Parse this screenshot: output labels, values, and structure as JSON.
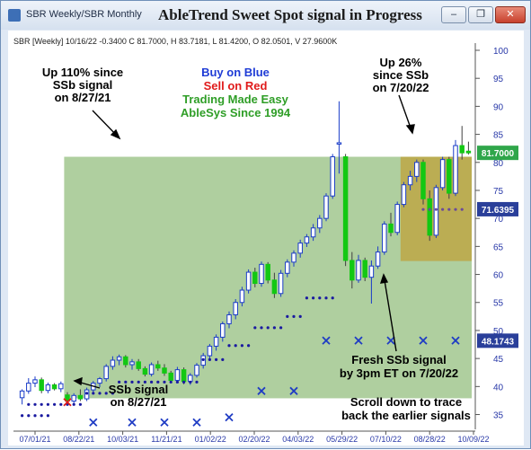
{
  "window": {
    "title": "SBR Weekly/SBR Monthly",
    "banner": "AbleTrend Sweet Spot signal in Progress",
    "minimize_glyph": "–",
    "restore_glyph": "❐",
    "close_glyph": "✕"
  },
  "chart_header": "SBR [Weekly] 10/16/22  -0.3400 C 81.7000, H 83.7181, L 81.4200, O 82.0501, V 27.9600K",
  "colors": {
    "up_candle": "#1a3cc8",
    "down_candle": "#13c813",
    "outline": "#404040",
    "dot": "#1a1aa0",
    "green_zone": "#9dc58a",
    "brown_zone": "#bfa23a",
    "buy_text": "#1f3cd6",
    "sell_text": "#e01b1b",
    "green_text": "#2f9e27"
  },
  "annotations": {
    "up110": [
      "Up 110% since",
      "SSb signal",
      "on 8/27/21"
    ],
    "buy": "Buy on Blue",
    "sell": "Sell on Red",
    "easy": "Trading Made Easy",
    "since": "AbleSys Since 1994",
    "up26": [
      "Up 26%",
      "since SSb",
      "on 7/20/22"
    ],
    "ssb_signal": [
      "SSb signal",
      "on 8/27/21"
    ],
    "fresh": [
      "Fresh SSb signal",
      "by 3pm ET on 7/20/22"
    ],
    "scroll": [
      "Scroll down to trace",
      "back the earlier signals"
    ]
  },
  "price_labels": {
    "current": "81.7000",
    "middle": "71.6395",
    "stop": "48.1743"
  },
  "chart_data": {
    "type": "candlestick",
    "ylim": [
      33,
      100
    ],
    "y_ticks": [
      35,
      40,
      45,
      50,
      55,
      60,
      65,
      70,
      75,
      80,
      85,
      90,
      95,
      100
    ],
    "x_ticks": [
      "07/01/21",
      "08/22/21",
      "10/03/21",
      "11/21/21",
      "01/02/22",
      "02/20/22",
      "04/03/22",
      "05/29/22",
      "07/10/22",
      "08/28/22",
      "10/09/22"
    ],
    "candles": [
      {
        "o": 38,
        "h": 39.5,
        "l": 36.8,
        "c": 39.2
      },
      {
        "o": 39.2,
        "h": 41.5,
        "l": 38.7,
        "c": 40.6
      },
      {
        "o": 40.6,
        "h": 41.8,
        "l": 39.9,
        "c": 41.2
      },
      {
        "o": 41.2,
        "h": 41.6,
        "l": 38.8,
        "c": 39.3
      },
      {
        "o": 39.3,
        "h": 40.7,
        "l": 38.8,
        "c": 40.3
      },
      {
        "o": 40.3,
        "h": 40.6,
        "l": 39.3,
        "c": 39.6
      },
      {
        "o": 39.6,
        "h": 40.9,
        "l": 39.0,
        "c": 40.5
      },
      {
        "o": 38.5,
        "h": 39.0,
        "l": 36.8,
        "c": 37.4
      },
      {
        "o": 37.4,
        "h": 38.8,
        "l": 37.0,
        "c": 38.4
      },
      {
        "o": 38.4,
        "h": 39.5,
        "l": 37.4,
        "c": 37.8
      },
      {
        "o": 37.8,
        "h": 39.8,
        "l": 37.4,
        "c": 39.4
      },
      {
        "o": 39.4,
        "h": 41.0,
        "l": 38.8,
        "c": 40.6
      },
      {
        "o": 40.6,
        "h": 41.7,
        "l": 39.9,
        "c": 41.4
      },
      {
        "o": 41.4,
        "h": 44.0,
        "l": 40.9,
        "c": 43.6
      },
      {
        "o": 43.6,
        "h": 45.4,
        "l": 43.0,
        "c": 44.7
      },
      {
        "o": 44.7,
        "h": 45.7,
        "l": 43.8,
        "c": 45.3
      },
      {
        "o": 45.3,
        "h": 45.6,
        "l": 43.4,
        "c": 43.9
      },
      {
        "o": 43.9,
        "h": 44.9,
        "l": 43.0,
        "c": 44.4
      },
      {
        "o": 44.4,
        "h": 44.9,
        "l": 42.8,
        "c": 43.2
      },
      {
        "o": 43.2,
        "h": 43.6,
        "l": 41.8,
        "c": 42.2
      },
      {
        "o": 42.2,
        "h": 44.3,
        "l": 41.8,
        "c": 43.9
      },
      {
        "o": 43.9,
        "h": 44.6,
        "l": 42.8,
        "c": 43.3
      },
      {
        "o": 43.3,
        "h": 44.0,
        "l": 41.9,
        "c": 42.4
      },
      {
        "o": 42.4,
        "h": 42.8,
        "l": 40.6,
        "c": 41.1
      },
      {
        "o": 41.1,
        "h": 43.5,
        "l": 40.6,
        "c": 43.0
      },
      {
        "o": 43.0,
        "h": 43.4,
        "l": 40.4,
        "c": 40.9
      },
      {
        "o": 40.9,
        "h": 42.4,
        "l": 40.3,
        "c": 42.0
      },
      {
        "o": 42.0,
        "h": 44.2,
        "l": 41.6,
        "c": 43.8
      },
      {
        "o": 43.8,
        "h": 46.0,
        "l": 43.2,
        "c": 45.5
      },
      {
        "o": 45.5,
        "h": 47.6,
        "l": 44.8,
        "c": 47.2
      },
      {
        "o": 47.2,
        "h": 49.3,
        "l": 46.4,
        "c": 48.8
      },
      {
        "o": 48.8,
        "h": 51.6,
        "l": 48.0,
        "c": 51.2
      },
      {
        "o": 51.2,
        "h": 53.4,
        "l": 50.4,
        "c": 52.8
      },
      {
        "o": 52.8,
        "h": 55.6,
        "l": 52.0,
        "c": 55.0
      },
      {
        "o": 55.0,
        "h": 57.8,
        "l": 54.3,
        "c": 57.2
      },
      {
        "o": 57.2,
        "h": 60.9,
        "l": 56.6,
        "c": 60.4
      },
      {
        "o": 60.4,
        "h": 61.2,
        "l": 57.7,
        "c": 58.4
      },
      {
        "o": 58.4,
        "h": 62.3,
        "l": 57.8,
        "c": 61.8
      },
      {
        "o": 61.8,
        "h": 62.2,
        "l": 58.4,
        "c": 59.0
      },
      {
        "o": 59.0,
        "h": 60.3,
        "l": 55.8,
        "c": 56.6
      },
      {
        "o": 56.6,
        "h": 60.8,
        "l": 56.0,
        "c": 60.2
      },
      {
        "o": 60.2,
        "h": 62.7,
        "l": 59.5,
        "c": 62.2
      },
      {
        "o": 62.2,
        "h": 64.3,
        "l": 61.4,
        "c": 63.8
      },
      {
        "o": 63.8,
        "h": 66.2,
        "l": 63.0,
        "c": 65.6
      },
      {
        "o": 65.6,
        "h": 67.2,
        "l": 64.9,
        "c": 66.7
      },
      {
        "o": 66.7,
        "h": 69.0,
        "l": 66.0,
        "c": 68.3
      },
      {
        "o": 68.3,
        "h": 70.6,
        "l": 67.4,
        "c": 70.0
      },
      {
        "o": 70.0,
        "h": 74.5,
        "l": 69.5,
        "c": 74.0
      },
      {
        "o": 74.0,
        "h": 81.5,
        "l": 73.5,
        "c": 81.0
      },
      {
        "o": 83.5,
        "h": 90.9,
        "l": 78.0,
        "c": 83.5
      },
      {
        "o": 81.0,
        "h": 81.5,
        "l": 61.5,
        "c": 62.5
      },
      {
        "o": 62.5,
        "h": 64.0,
        "l": 57.5,
        "c": 59.0
      },
      {
        "o": 59.0,
        "h": 63.5,
        "l": 58.5,
        "c": 62.5
      },
      {
        "o": 62.5,
        "h": 63.0,
        "l": 58.8,
        "c": 59.5
      },
      {
        "o": 59.5,
        "h": 62.5,
        "l": 54.8,
        "c": 61.5
      },
      {
        "o": 61.5,
        "h": 65.0,
        "l": 61.0,
        "c": 64.0
      },
      {
        "o": 64.0,
        "h": 69.5,
        "l": 63.5,
        "c": 69.0
      },
      {
        "o": 69.0,
        "h": 71.0,
        "l": 66.8,
        "c": 67.5
      },
      {
        "o": 67.5,
        "h": 73.0,
        "l": 67.0,
        "c": 72.5
      },
      {
        "o": 72.5,
        "h": 76.5,
        "l": 72.0,
        "c": 76.0
      },
      {
        "o": 76.0,
        "h": 78.5,
        "l": 75.0,
        "c": 77.5
      },
      {
        "o": 77.5,
        "h": 80.5,
        "l": 76.5,
        "c": 80.0
      },
      {
        "o": 80.0,
        "h": 80.5,
        "l": 72.5,
        "c": 73.5
      },
      {
        "o": 73.5,
        "h": 75.0,
        "l": 66.0,
        "c": 67.0
      },
      {
        "o": 67.0,
        "h": 76.0,
        "l": 66.5,
        "c": 75.5
      },
      {
        "o": 75.5,
        "h": 81.0,
        "l": 75.0,
        "c": 80.5
      },
      {
        "o": 80.5,
        "h": 81.0,
        "l": 73.5,
        "c": 74.5
      },
      {
        "o": 74.5,
        "h": 84.0,
        "l": 74.0,
        "c": 83.0
      },
      {
        "o": 83.0,
        "h": 86.5,
        "l": 80.5,
        "c": 81.7
      },
      {
        "o": 82.0,
        "h": 83.7,
        "l": 81.4,
        "c": 81.7
      }
    ],
    "stop_dots": [
      {
        "from": 0,
        "to": 4,
        "y": 34.8
      },
      {
        "from": 1,
        "to": 9,
        "y": 36.8
      },
      {
        "from": 10,
        "to": 14,
        "y": 38.8
      },
      {
        "from": 15,
        "to": 27,
        "y": 40.8
      },
      {
        "from": 28,
        "to": 31,
        "y": 44.8
      },
      {
        "from": 32,
        "to": 35,
        "y": 47.3
      },
      {
        "from": 36,
        "to": 40,
        "y": 50.5
      },
      {
        "from": 41,
        "to": 43,
        "y": 52.5
      },
      {
        "from": 44,
        "to": 48,
        "y": 55.8
      },
      {
        "from": 62,
        "to": 68,
        "y": 71.6
      }
    ],
    "blue_crosses": [
      {
        "i": 11,
        "y": 33.6
      },
      {
        "i": 17,
        "y": 33.6
      },
      {
        "i": 22,
        "y": 33.6
      },
      {
        "i": 27,
        "y": 33.6
      },
      {
        "i": 32,
        "y": 34.5
      },
      {
        "i": 37,
        "y": 39.2
      },
      {
        "i": 42,
        "y": 39.2
      },
      {
        "i": 47,
        "y": 48.2
      },
      {
        "i": 52,
        "y": 48.2
      },
      {
        "i": 57,
        "y": 48.2
      },
      {
        "i": 62,
        "y": 48.2
      },
      {
        "i": 67,
        "y": 48.2
      }
    ],
    "red_cross": {
      "i": 7,
      "y": 37.2
    },
    "zones": [
      {
        "name": "green",
        "from": 7,
        "to": 69,
        "ylo": 37.9,
        "yhi": 81.0
      },
      {
        "name": "brown",
        "from": 59,
        "to": 69,
        "ylo": 62.4,
        "yhi": 81.0
      }
    ]
  }
}
